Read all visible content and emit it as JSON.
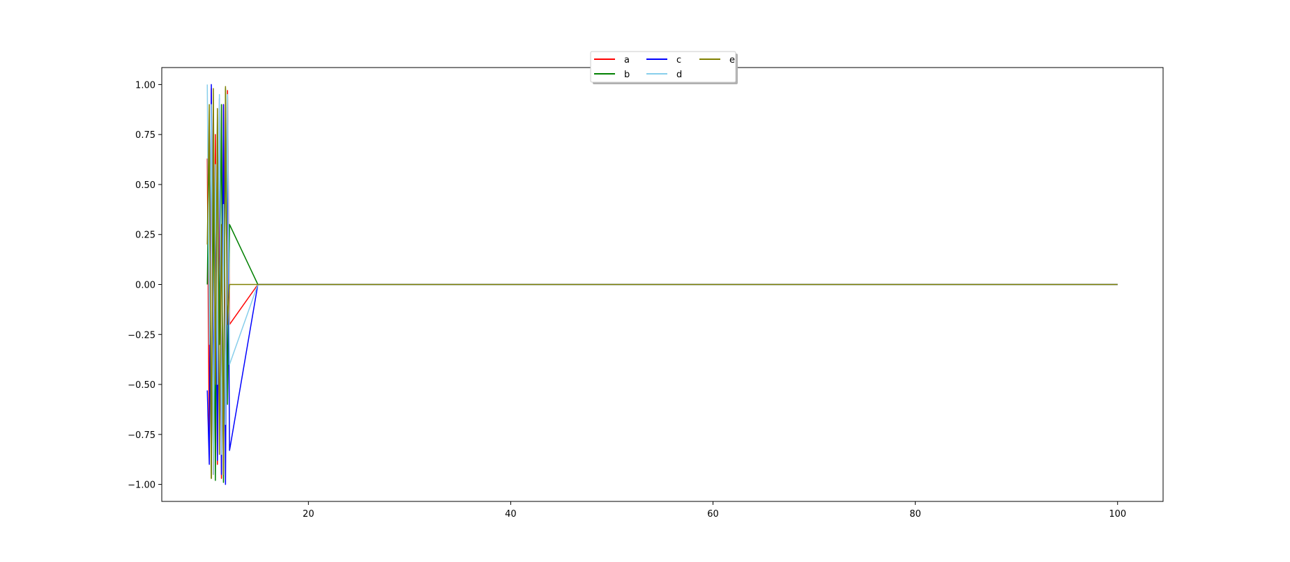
{
  "chart_data": {
    "type": "line",
    "title": "",
    "xlabel": "",
    "ylabel": "",
    "xlim": [
      5.5,
      104.5
    ],
    "ylim": [
      -1.085,
      1.085
    ],
    "x_ticks": [
      20,
      40,
      60,
      80,
      100
    ],
    "x_tick_labels": [
      "20",
      "40",
      "60",
      "80",
      "100"
    ],
    "y_ticks": [
      1.0,
      0.75,
      0.5,
      0.25,
      0.0,
      -0.25,
      -0.5,
      -0.75,
      -1.0
    ],
    "y_tick_labels": [
      "1.00",
      "0.75",
      "0.50",
      "0.25",
      "0.00",
      "−0.25",
      "−0.50",
      "−0.75",
      "−1.00"
    ],
    "grid": false,
    "legend": {
      "placement": "upper center",
      "ncol": 3
    },
    "series": [
      {
        "name": "a",
        "color": "#ff0000",
        "x": [
          10,
          10.2,
          10.4,
          10.6,
          10.8,
          11,
          11.2,
          11.4,
          11.6,
          11.8,
          12,
          12.2,
          15,
          30,
          50,
          70,
          90,
          100
        ],
        "values": [
          0.63,
          -0.85,
          0.98,
          -0.95,
          0.75,
          -0.9,
          0.5,
          -0.97,
          0.9,
          -0.75,
          0.97,
          -0.2,
          0,
          0,
          0,
          0,
          0,
          0
        ]
      },
      {
        "name": "b",
        "color": "#008000",
        "x": [
          10,
          10.2,
          10.4,
          10.6,
          10.8,
          11,
          11.2,
          11.4,
          11.6,
          11.8,
          12,
          12.2,
          15,
          30,
          50,
          70,
          90,
          100
        ],
        "values": [
          0.0,
          0.78,
          -0.97,
          0.6,
          -0.98,
          0.85,
          -0.3,
          0.9,
          -0.99,
          0.98,
          -0.6,
          0.3,
          0,
          0,
          0,
          0,
          0,
          0
        ]
      },
      {
        "name": "c",
        "color": "#0000ff",
        "x": [
          10,
          10.2,
          10.4,
          10.6,
          10.8,
          11,
          11.2,
          11.4,
          11.6,
          11.8,
          12,
          12.2,
          15,
          30,
          50,
          70,
          90,
          100
        ],
        "values": [
          -0.53,
          -0.9,
          1.0,
          -0.6,
          0.47,
          -0.88,
          0.93,
          -0.95,
          0.9,
          -1.0,
          0.85,
          -0.83,
          0,
          0,
          0,
          0,
          0,
          0
        ]
      },
      {
        "name": "d",
        "color": "#87ceeb",
        "x": [
          10,
          10.2,
          10.4,
          10.6,
          10.8,
          11,
          11.2,
          11.4,
          11.6,
          11.8,
          12,
          12.2,
          15,
          30,
          50,
          70,
          90,
          100
        ],
        "values": [
          1.0,
          -0.3,
          0.9,
          -0.95,
          0.6,
          -0.5,
          0.95,
          -0.85,
          0.4,
          -0.7,
          0.95,
          -0.4,
          0,
          0,
          0,
          0,
          0,
          0
        ]
      },
      {
        "name": "e",
        "color": "#808000",
        "x": [
          10,
          10.2,
          10.4,
          10.6,
          10.8,
          11,
          11.2,
          11.4,
          11.6,
          11.8,
          12,
          12.2,
          15,
          30,
          50,
          70,
          90,
          100
        ],
        "values": [
          0.2,
          0.9,
          -0.97,
          0.98,
          -0.5,
          0.88,
          -0.85,
          0.3,
          -0.95,
          0.99,
          -0.2,
          0.0,
          0,
          0,
          0,
          0,
          0,
          0
        ]
      }
    ]
  }
}
